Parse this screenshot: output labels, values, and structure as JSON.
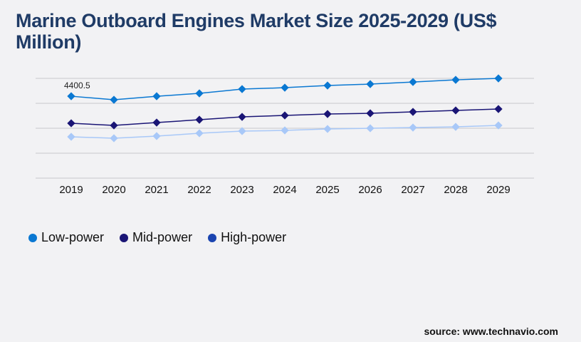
{
  "chart_data": {
    "type": "line",
    "title": "Marine Outboard Engines Market Size 2025-2029 (US$ Million)",
    "categories": [
      "2019",
      "2020",
      "2021",
      "2022",
      "2023",
      "2024",
      "2025",
      "2026",
      "2027",
      "2028",
      "2029"
    ],
    "ylim": [
      0,
      5360
    ],
    "grid": true,
    "legend_position": "bottom-left",
    "series": [
      {
        "name": "Low-power",
        "color": "#0a78d2",
        "legend_color": "#0a78d2",
        "values": [
          4400.5,
          4210,
          4400,
          4554,
          4784,
          4860,
          4975,
          5052,
          5166,
          5281,
          5358
        ]
      },
      {
        "name": "Mid-power",
        "color": "#1a1575",
        "legend_color": "#1a1575",
        "values": [
          2947,
          2832,
          2985,
          3138,
          3291,
          3368,
          3444,
          3483,
          3559,
          3636,
          3712
        ]
      },
      {
        "name": "High-power",
        "color": "#a8c8f8",
        "legend_color": "#1a44b0",
        "values": [
          2220,
          2143,
          2258,
          2411,
          2526,
          2564,
          2641,
          2679,
          2717,
          2755,
          2832
        ]
      }
    ],
    "annotations": [
      {
        "series": "Low-power",
        "category": "2019",
        "text": "4400.5"
      }
    ]
  },
  "source": "source: www.technavio.com"
}
